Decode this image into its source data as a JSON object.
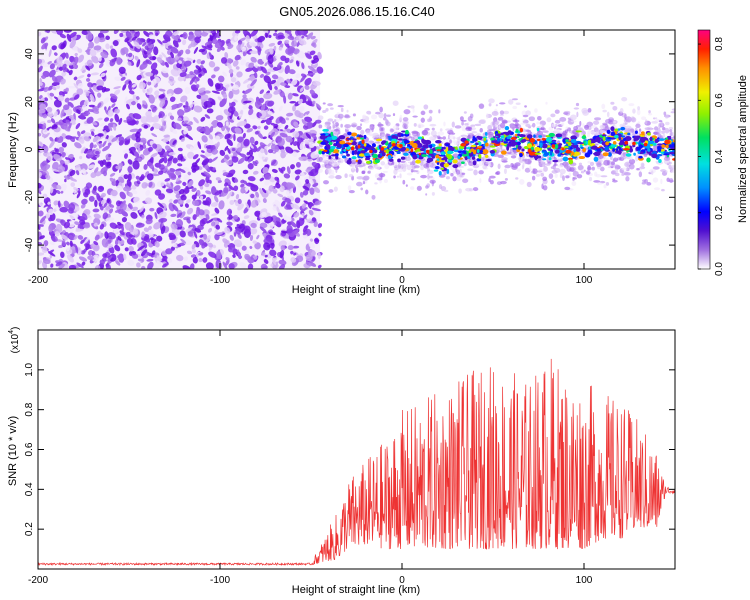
{
  "title": "GN05.2026.086.15.16.C40",
  "chart_data": [
    {
      "type": "heatmap",
      "xlabel": "Height of straight line (km)",
      "ylabel": "Frequency (Hz)",
      "xlim": [
        -200,
        150
      ],
      "ylim": [
        -50,
        50
      ],
      "xticks": [
        -200,
        -100,
        0,
        100
      ],
      "yticks": [
        -40,
        -20,
        0,
        20,
        40
      ],
      "noise_region_x": [
        -200,
        -45
      ],
      "signal_region_x": [
        -45,
        150
      ],
      "ridge": {
        "x": [
          -45,
          -35,
          -25,
          -15,
          -5,
          5,
          15,
          22,
          30,
          40,
          50,
          58,
          65,
          75,
          90,
          105,
          120,
          135,
          150
        ],
        "y": [
          2,
          2,
          0,
          -1,
          2,
          1,
          -1,
          -4,
          -2,
          0,
          3,
          5,
          3,
          2,
          1,
          2,
          3,
          2,
          1
        ]
      },
      "colorbar": {
        "label": "Normalized spectral amplitude",
        "range": [
          0,
          0.85
        ],
        "ticks": [
          0.0,
          0.2,
          0.4,
          0.6,
          0.8
        ],
        "tick_labels": [
          "0.0",
          "0.2",
          "0.4",
          "0.6",
          "0.8"
        ]
      }
    },
    {
      "type": "line",
      "xlabel": "Height of straight line (km)",
      "ylabel": "SNR (10 * v/v)",
      "scale_label": "(x10",
      "scale_exp": "4",
      "scale_close": ")",
      "xlim": [
        -200,
        150
      ],
      "ylim": [
        0,
        1.2
      ],
      "xticks": [
        -200,
        -100,
        0,
        100
      ],
      "yticks": [
        0.2,
        0.4,
        0.6,
        0.8,
        1.0
      ],
      "ytick_labels": [
        "0.2",
        "0.4",
        "0.6",
        "0.8",
        "1.0"
      ],
      "color": "#ee3333",
      "envelope": {
        "x": [
          -200,
          -50,
          -35,
          -30,
          -20,
          -10,
          0,
          10,
          20,
          30,
          40,
          50,
          60,
          70,
          80,
          90,
          100,
          110,
          120,
          130,
          140,
          145,
          150
        ],
        "base": [
          0.02,
          0.02,
          0.05,
          0.1,
          0.12,
          0.1,
          0.1,
          0.1,
          0.1,
          0.1,
          0.1,
          0.1,
          0.1,
          0.1,
          0.1,
          0.1,
          0.1,
          0.15,
          0.15,
          0.2,
          0.2,
          0.38,
          0.38
        ],
        "peak": [
          0.03,
          0.03,
          0.3,
          0.45,
          0.55,
          0.65,
          0.8,
          0.85,
          0.9,
          0.95,
          1.0,
          1.05,
          1.0,
          0.95,
          1.1,
          1.0,
          0.95,
          0.9,
          0.85,
          0.75,
          0.6,
          0.42,
          0.41
        ]
      }
    }
  ]
}
